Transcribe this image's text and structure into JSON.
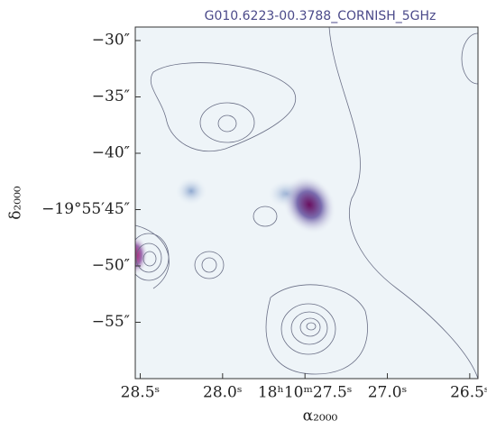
{
  "chart_data": {
    "type": "image",
    "title": "G010.6223-00.3788_CORNISH_5GHz",
    "xlabel": "α₂₀₀₀",
    "ylabel": "δ₂₀₀₀",
    "xlim": [
      28.53,
      26.45
    ],
    "xticks": [
      {
        "value": 28.5,
        "label": "28.5ˢ"
      },
      {
        "value": 28.0,
        "label": "28.0ˢ"
      },
      {
        "value": 27.5,
        "label": "18ʰ10ᵐ27.5ˢ"
      },
      {
        "value": 27.0,
        "label": "27.0ˢ"
      },
      {
        "value": 26.5,
        "label": "26.5ˢ"
      }
    ],
    "ylim": [
      60,
      27.2
    ],
    "yticks": [
      {
        "value": 30,
        "label": "−30″"
      },
      {
        "value": 35,
        "label": "−35″"
      },
      {
        "value": 40,
        "label": "−40″"
      },
      {
        "value": 45,
        "label": "−19°55′45″"
      },
      {
        "value": 50,
        "label": "−50″"
      },
      {
        "value": 55,
        "label": "−55″"
      }
    ]
  }
}
